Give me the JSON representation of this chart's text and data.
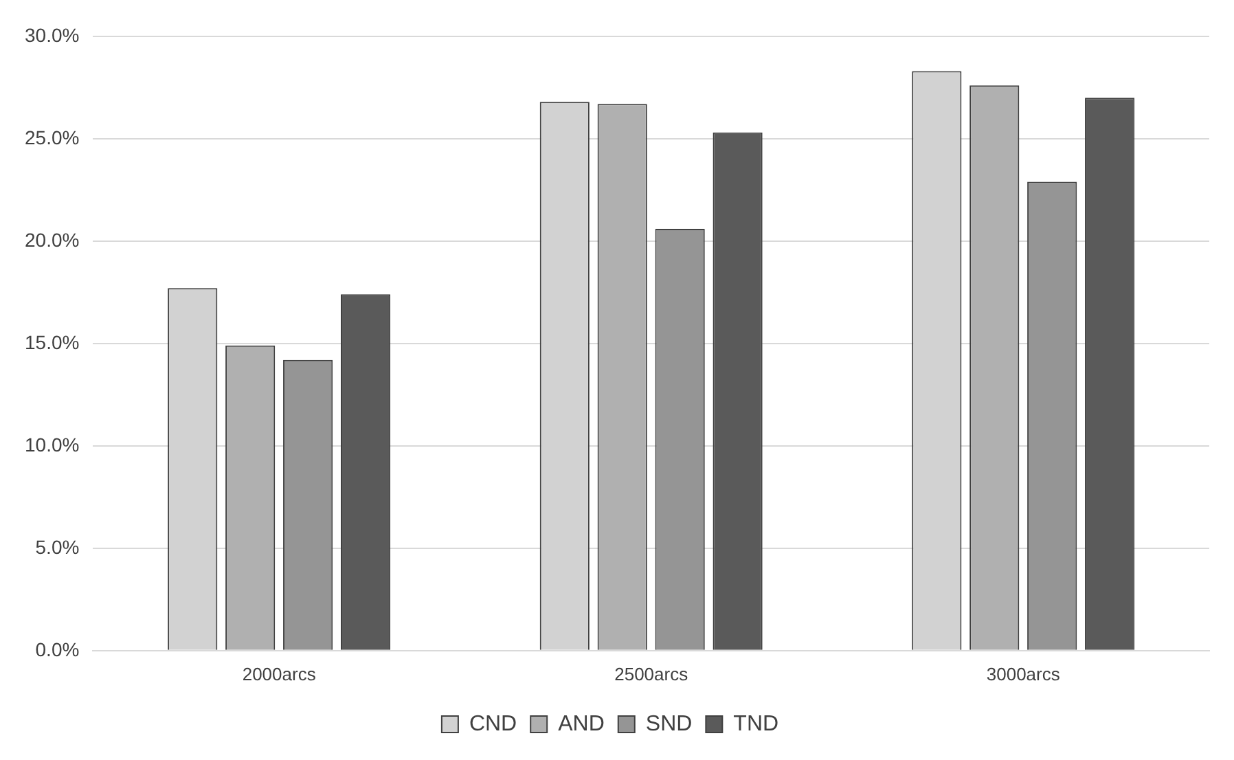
{
  "chart_data": {
    "type": "bar",
    "categories": [
      "2000arcs",
      "2500arcs",
      "3000arcs"
    ],
    "series": [
      {
        "name": "CND",
        "color": "#d2d2d2",
        "values": [
          17.7,
          26.8,
          28.3
        ]
      },
      {
        "name": "AND",
        "color": "#b0b0b0",
        "values": [
          14.9,
          26.7,
          27.6
        ]
      },
      {
        "name": "SND",
        "color": "#959595",
        "values": [
          14.2,
          20.6,
          22.9
        ]
      },
      {
        "name": "TND",
        "color": "#5a5a5a",
        "values": [
          17.4,
          25.3,
          27.0
        ]
      }
    ],
    "ylim": [
      0,
      30
    ],
    "yticks": [
      {
        "value": 0,
        "label": "0.0%"
      },
      {
        "value": 5,
        "label": "5.0%"
      },
      {
        "value": 10,
        "label": "10.0%"
      },
      {
        "value": 15,
        "label": "15.0%"
      },
      {
        "value": 20,
        "label": "20.0%"
      },
      {
        "value": 25,
        "label": "25.0%"
      },
      {
        "value": 30,
        "label": "30.0%"
      }
    ],
    "grid": "y",
    "legend": "bottom"
  }
}
